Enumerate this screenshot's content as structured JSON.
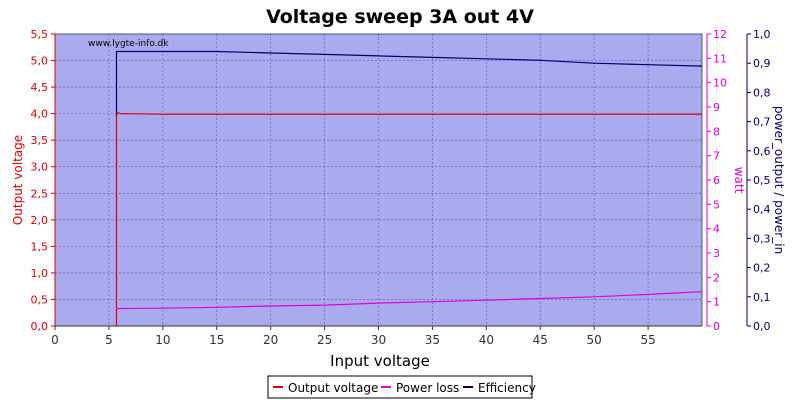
{
  "colors": {
    "background": "#ffffff",
    "plot_background": "#aaaaee",
    "grid": "#5555aa",
    "left_axis": "#dd0000",
    "right_axis_1": "#dd00dd",
    "right_axis_2": "#000066",
    "bottom_axis": "#333333",
    "output_voltage": "#dd0000",
    "power_loss": "#dd00dd",
    "efficiency": "#000066"
  },
  "chart_data": {
    "type": "line",
    "title": "Voltage sweep 3A out 4V",
    "watermark": "www.lygte-info.dk",
    "xlabel": "Input voltage",
    "xlim": [
      0,
      60
    ],
    "x_ticks": [
      "0",
      "5",
      "10",
      "15",
      "20",
      "25",
      "30",
      "35",
      "40",
      "45",
      "50",
      "55"
    ],
    "grid": true,
    "legend_position": "bottom-center",
    "axes": {
      "left": {
        "label": "Output voltage",
        "ylim": [
          0,
          5.5
        ],
        "ticks": [
          "0,0",
          "0,5",
          "1,0",
          "1,5",
          "2,0",
          "2,5",
          "3,0",
          "3,5",
          "4,0",
          "4,5",
          "5,0",
          "5,5"
        ]
      },
      "right1": {
        "label": "watt",
        "ylim": [
          0,
          12
        ],
        "ticks": [
          "0",
          "1",
          "2",
          "3",
          "4",
          "5",
          "6",
          "7",
          "8",
          "9",
          "10",
          "11",
          "12"
        ]
      },
      "right2": {
        "label": "power_output / power_in",
        "ylim": [
          0,
          1
        ],
        "ticks": [
          "0,0",
          "0,1",
          "0,2",
          "0,3",
          "0,4",
          "0,5",
          "0,6",
          "0,7",
          "0,8",
          "0,9",
          "1,0"
        ]
      }
    },
    "series": [
      {
        "name": "Output voltage",
        "axis": "left",
        "x": [
          5.7,
          5.7,
          5.75,
          6.0,
          10,
          20,
          30,
          40,
          50,
          60
        ],
        "y": [
          0.0,
          3.98,
          4.02,
          4.0,
          3.99,
          3.99,
          3.99,
          3.99,
          3.99,
          3.99
        ]
      },
      {
        "name": "Power loss",
        "axis": "right1",
        "x": [
          5.7,
          10,
          15,
          20,
          25,
          30,
          35,
          40,
          45,
          50,
          55,
          60
        ],
        "y": [
          0.72,
          0.73,
          0.77,
          0.82,
          0.86,
          0.94,
          1.0,
          1.06,
          1.13,
          1.2,
          1.3,
          1.41
        ]
      },
      {
        "name": "Efficiency",
        "axis": "right2",
        "x": [
          5.7,
          5.7,
          10,
          15,
          20,
          25,
          30,
          35,
          40,
          45,
          50,
          55,
          60
        ],
        "y": [
          0.72,
          0.94,
          0.94,
          0.94,
          0.935,
          0.93,
          0.925,
          0.92,
          0.915,
          0.91,
          0.9,
          0.895,
          0.89
        ]
      }
    ]
  }
}
